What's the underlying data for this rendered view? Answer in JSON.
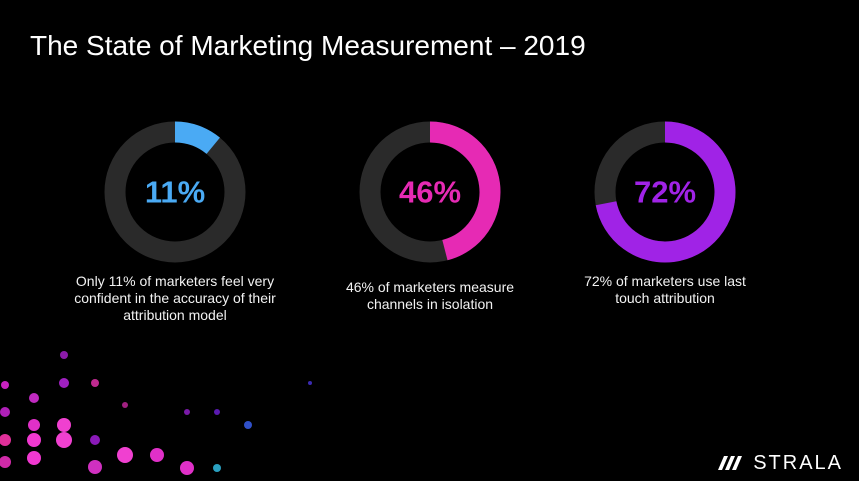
{
  "title": "The State of Marketing Measurement – 2019",
  "chart_data": [
    {
      "type": "donut",
      "values": [
        11
      ],
      "value_labels": [
        "11%"
      ],
      "color": "#4aaaf4",
      "caption": "Only 11% of marketers feel very confident in the accuracy of their attribution model"
    },
    {
      "type": "donut",
      "values": [
        46
      ],
      "value_labels": [
        "46%"
      ],
      "color": "#e62ab4",
      "caption": "46% of marketers measure channels in isolation"
    },
    {
      "type": "donut",
      "values": [
        72
      ],
      "value_labels": [
        "72%"
      ],
      "color": "#a023e6",
      "caption": "72% of marketers use last touch attribution"
    }
  ],
  "logo": "STRALA"
}
